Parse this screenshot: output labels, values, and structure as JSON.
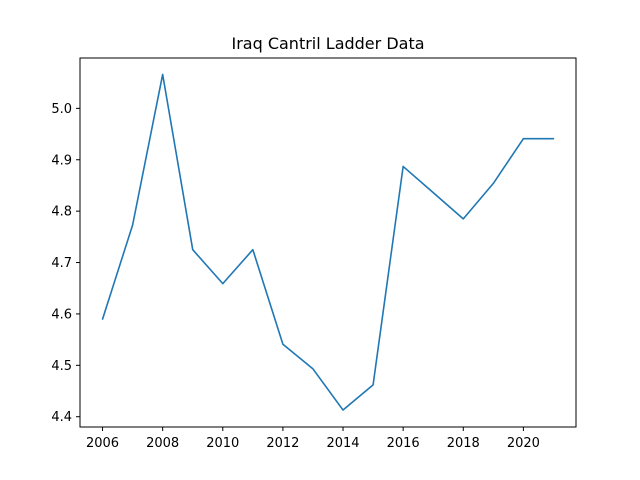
{
  "chart_data": {
    "type": "line",
    "title": "Iraq Cantril Ladder Data",
    "xlabel": "",
    "ylabel": "",
    "x": [
      2006,
      2007,
      2008,
      2009,
      2010,
      2011,
      2012,
      2013,
      2014,
      2015,
      2016,
      2017,
      2018,
      2019,
      2020,
      2021
    ],
    "series": [
      {
        "values": [
          4.59,
          4.773,
          5.066,
          4.725,
          4.659,
          4.725,
          4.541,
          4.493,
          4.413,
          4.462,
          4.887,
          4.836,
          4.785,
          4.854,
          4.941,
          4.941
        ],
        "color": "#1f77b4"
      }
    ],
    "xlim": [
      2005.25,
      2021.75
    ],
    "ylim": [
      4.38,
      5.098
    ],
    "xticks": [
      2006,
      2008,
      2010,
      2012,
      2014,
      2016,
      2018,
      2020
    ],
    "xtick_labels": [
      "2006",
      "2008",
      "2010",
      "2012",
      "2014",
      "2016",
      "2018",
      "2020"
    ],
    "yticks": [
      4.4,
      4.5,
      4.6,
      4.7,
      4.8,
      4.9,
      5.0
    ],
    "ytick_labels": [
      "4.4",
      "4.5",
      "4.6",
      "4.7",
      "4.8",
      "4.9",
      "5.0"
    ],
    "grid": false,
    "legend": "none"
  }
}
